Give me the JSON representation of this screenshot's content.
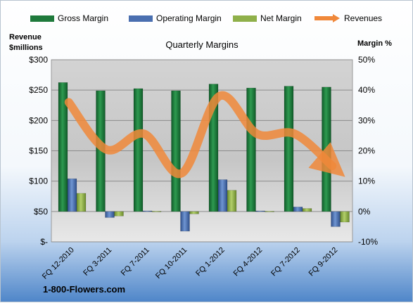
{
  "chart_data": {
    "type": "bar",
    "title": "Quarterly Margins",
    "categories": [
      "FQ 12-2010",
      "FQ 3-2011",
      "FQ 7-2011",
      "FQ 10-2011",
      "FQ 1-2012",
      "FQ 4-2012",
      "FQ 7-2012",
      "FQ 9-2012"
    ],
    "y_left_label": [
      "Revenue",
      "$millions"
    ],
    "y_right_label": "Margin %",
    "ylim_left": [
      0,
      300
    ],
    "ylim_right": [
      -10,
      50
    ],
    "y_left_ticks": [
      "$-",
      "$50",
      "$100",
      "$150",
      "$200",
      "$250",
      "$300"
    ],
    "y_right_ticks": [
      "-10%",
      "0%",
      "10%",
      "20%",
      "30%",
      "40%",
      "50%"
    ],
    "series": [
      {
        "name": "Gross Margin",
        "type": "bar",
        "axis": "right",
        "color": "#1f7a3c",
        "values": [
          42.5,
          39.8,
          40.5,
          39.8,
          42.0,
          40.7,
          41.3,
          41.0
        ]
      },
      {
        "name": "Operating Margin",
        "type": "bar",
        "axis": "right",
        "color": "#4a6fb0",
        "values": [
          10.8,
          -2.0,
          0.2,
          -6.5,
          10.5,
          0.2,
          1.5,
          -5.0
        ]
      },
      {
        "name": "Net Margin",
        "type": "bar",
        "axis": "right",
        "color": "#8fb04a",
        "values": [
          6.0,
          -1.5,
          0.1,
          -0.8,
          7.0,
          0.1,
          1.0,
          -3.5
        ]
      },
      {
        "name": "Revenues",
        "type": "line",
        "axis": "left",
        "color": "#f0883a",
        "values": [
          230,
          152,
          178,
          113,
          240,
          178,
          178,
          125
        ]
      }
    ],
    "grid": true,
    "legend_position": "top"
  },
  "source_label": "1-800-Flowers.com"
}
